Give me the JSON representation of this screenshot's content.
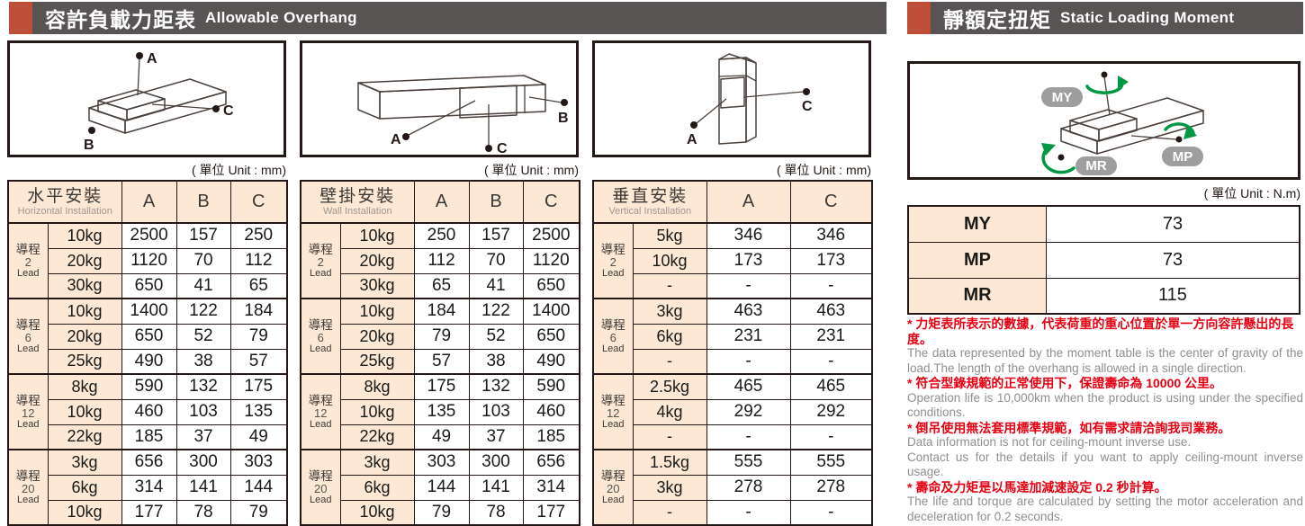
{
  "left_header": {
    "title_zh": "容許負載力距表",
    "title_en": "Allowable Overhang"
  },
  "right_header": {
    "title_zh": "靜額定扭矩",
    "title_en": "Static Loading Moment"
  },
  "units": {
    "mm": "( 單位 Unit : mm)",
    "nm": "( 單位 Unit : N.m)"
  },
  "diagrams": {
    "horizontal": {
      "labels": {
        "a": "A",
        "b": "B",
        "c": "C"
      }
    },
    "wall": {
      "labels": {
        "a": "A",
        "b": "B",
        "c": "C"
      }
    },
    "vertical": {
      "labels": {
        "a": "A",
        "c": "C"
      }
    },
    "moment": {
      "labels": {
        "my": "MY",
        "mp": "MP",
        "mr": "MR"
      }
    }
  },
  "install_tables": [
    {
      "title_zh": "水平安裝",
      "title_en": "Horizontal Installation",
      "columns": [
        "A",
        "B",
        "C"
      ],
      "groups": [
        {
          "lead_zh": "導程",
          "lead_num": "2",
          "lead_en": "Lead",
          "rows": [
            [
              "10kg",
              "2500",
              "157",
              "250"
            ],
            [
              "20kg",
              "1120",
              "70",
              "112"
            ],
            [
              "30kg",
              "650",
              "41",
              "65"
            ]
          ]
        },
        {
          "lead_zh": "導程",
          "lead_num": "6",
          "lead_en": "Lead",
          "rows": [
            [
              "10kg",
              "1400",
              "122",
              "184"
            ],
            [
              "20kg",
              "650",
              "52",
              "79"
            ],
            [
              "25kg",
              "490",
              "38",
              "57"
            ]
          ]
        },
        {
          "lead_zh": "導程",
          "lead_num": "12",
          "lead_en": "Lead",
          "rows": [
            [
              "8kg",
              "590",
              "132",
              "175"
            ],
            [
              "10kg",
              "460",
              "103",
              "135"
            ],
            [
              "22kg",
              "185",
              "37",
              "49"
            ]
          ]
        },
        {
          "lead_zh": "導程",
          "lead_num": "20",
          "lead_en": "Lead",
          "rows": [
            [
              "3kg",
              "656",
              "300",
              "303"
            ],
            [
              "6kg",
              "314",
              "141",
              "144"
            ],
            [
              "10kg",
              "177",
              "78",
              "79"
            ]
          ]
        }
      ]
    },
    {
      "title_zh": "壁掛安裝",
      "title_en": "Wall Installation",
      "columns": [
        "A",
        "B",
        "C"
      ],
      "groups": [
        {
          "lead_zh": "導程",
          "lead_num": "2",
          "lead_en": "Lead",
          "rows": [
            [
              "10kg",
              "250",
              "157",
              "2500"
            ],
            [
              "20kg",
              "112",
              "70",
              "1120"
            ],
            [
              "30kg",
              "65",
              "41",
              "650"
            ]
          ]
        },
        {
          "lead_zh": "導程",
          "lead_num": "6",
          "lead_en": "Lead",
          "rows": [
            [
              "10kg",
              "184",
              "122",
              "1400"
            ],
            [
              "20kg",
              "79",
              "52",
              "650"
            ],
            [
              "25kg",
              "57",
              "38",
              "490"
            ]
          ]
        },
        {
          "lead_zh": "導程",
          "lead_num": "12",
          "lead_en": "Lead",
          "rows": [
            [
              "8kg",
              "175",
              "132",
              "590"
            ],
            [
              "10kg",
              "135",
              "103",
              "460"
            ],
            [
              "22kg",
              "49",
              "37",
              "185"
            ]
          ]
        },
        {
          "lead_zh": "導程",
          "lead_num": "20",
          "lead_en": "Lead",
          "rows": [
            [
              "3kg",
              "303",
              "300",
              "656"
            ],
            [
              "6kg",
              "144",
              "141",
              "314"
            ],
            [
              "10kg",
              "79",
              "78",
              "177"
            ]
          ]
        }
      ]
    },
    {
      "title_zh": "垂直安裝",
      "title_en": "Vertical Installation",
      "columns": [
        "A",
        "C"
      ],
      "groups": [
        {
          "lead_zh": "導程",
          "lead_num": "2",
          "lead_en": "Lead",
          "rows": [
            [
              "5kg",
              "346",
              "346"
            ],
            [
              "10kg",
              "173",
              "173"
            ],
            [
              "-",
              "-",
              "-"
            ]
          ]
        },
        {
          "lead_zh": "導程",
          "lead_num": "6",
          "lead_en": "Lead",
          "rows": [
            [
              "3kg",
              "463",
              "463"
            ],
            [
              "6kg",
              "231",
              "231"
            ],
            [
              "-",
              "-",
              "-"
            ]
          ]
        },
        {
          "lead_zh": "導程",
          "lead_num": "12",
          "lead_en": "Lead",
          "rows": [
            [
              "2.5kg",
              "465",
              "465"
            ],
            [
              "4kg",
              "292",
              "292"
            ],
            [
              "-",
              "-",
              "-"
            ]
          ]
        },
        {
          "lead_zh": "導程",
          "lead_num": "20",
          "lead_en": "Lead",
          "rows": [
            [
              "1.5kg",
              "555",
              "555"
            ],
            [
              "3kg",
              "278",
              "278"
            ],
            [
              "-",
              "-",
              "-"
            ]
          ]
        }
      ]
    }
  ],
  "moment_table": {
    "rows": [
      [
        "MY",
        "73"
      ],
      [
        "MP",
        "73"
      ],
      [
        "MR",
        "115"
      ]
    ]
  },
  "notes": [
    {
      "zh": "* 力矩表所表示的數據，代表荷重的重心位置於單一方向容許懸出的長度。",
      "en": [
        "The data represented by the moment table is the center of gravity of the load.The length of the overhang is allowed in a single direction."
      ]
    },
    {
      "zh": "* 符合型錄規範的正常使用下，保證壽命為 10000 公里。",
      "en": [
        "Operation life is 10,000km when the product is using under the specified conditions."
      ]
    },
    {
      "zh": "* 倒吊使用無法套用標準規範，如有需求請洽詢我司業務。",
      "en": [
        "Data information is not for ceiling-mount inverse use.",
        "Contact us for the details if you want to apply ceiling-mount inverse usage."
      ]
    },
    {
      "zh": "* 壽命及力矩是以馬達加減速設定 0.2 秒計算。",
      "en": [
        "The life and torque are calculated by setting the motor acceleration and deceleration for 0.2 seconds."
      ]
    }
  ],
  "colors": {
    "accent": "#bd4f38",
    "bar_gray": "#595454",
    "peach": "#fce8d5",
    "note_red": "#e60012",
    "note_gray": "#8f8f8f",
    "green": "#009844"
  }
}
